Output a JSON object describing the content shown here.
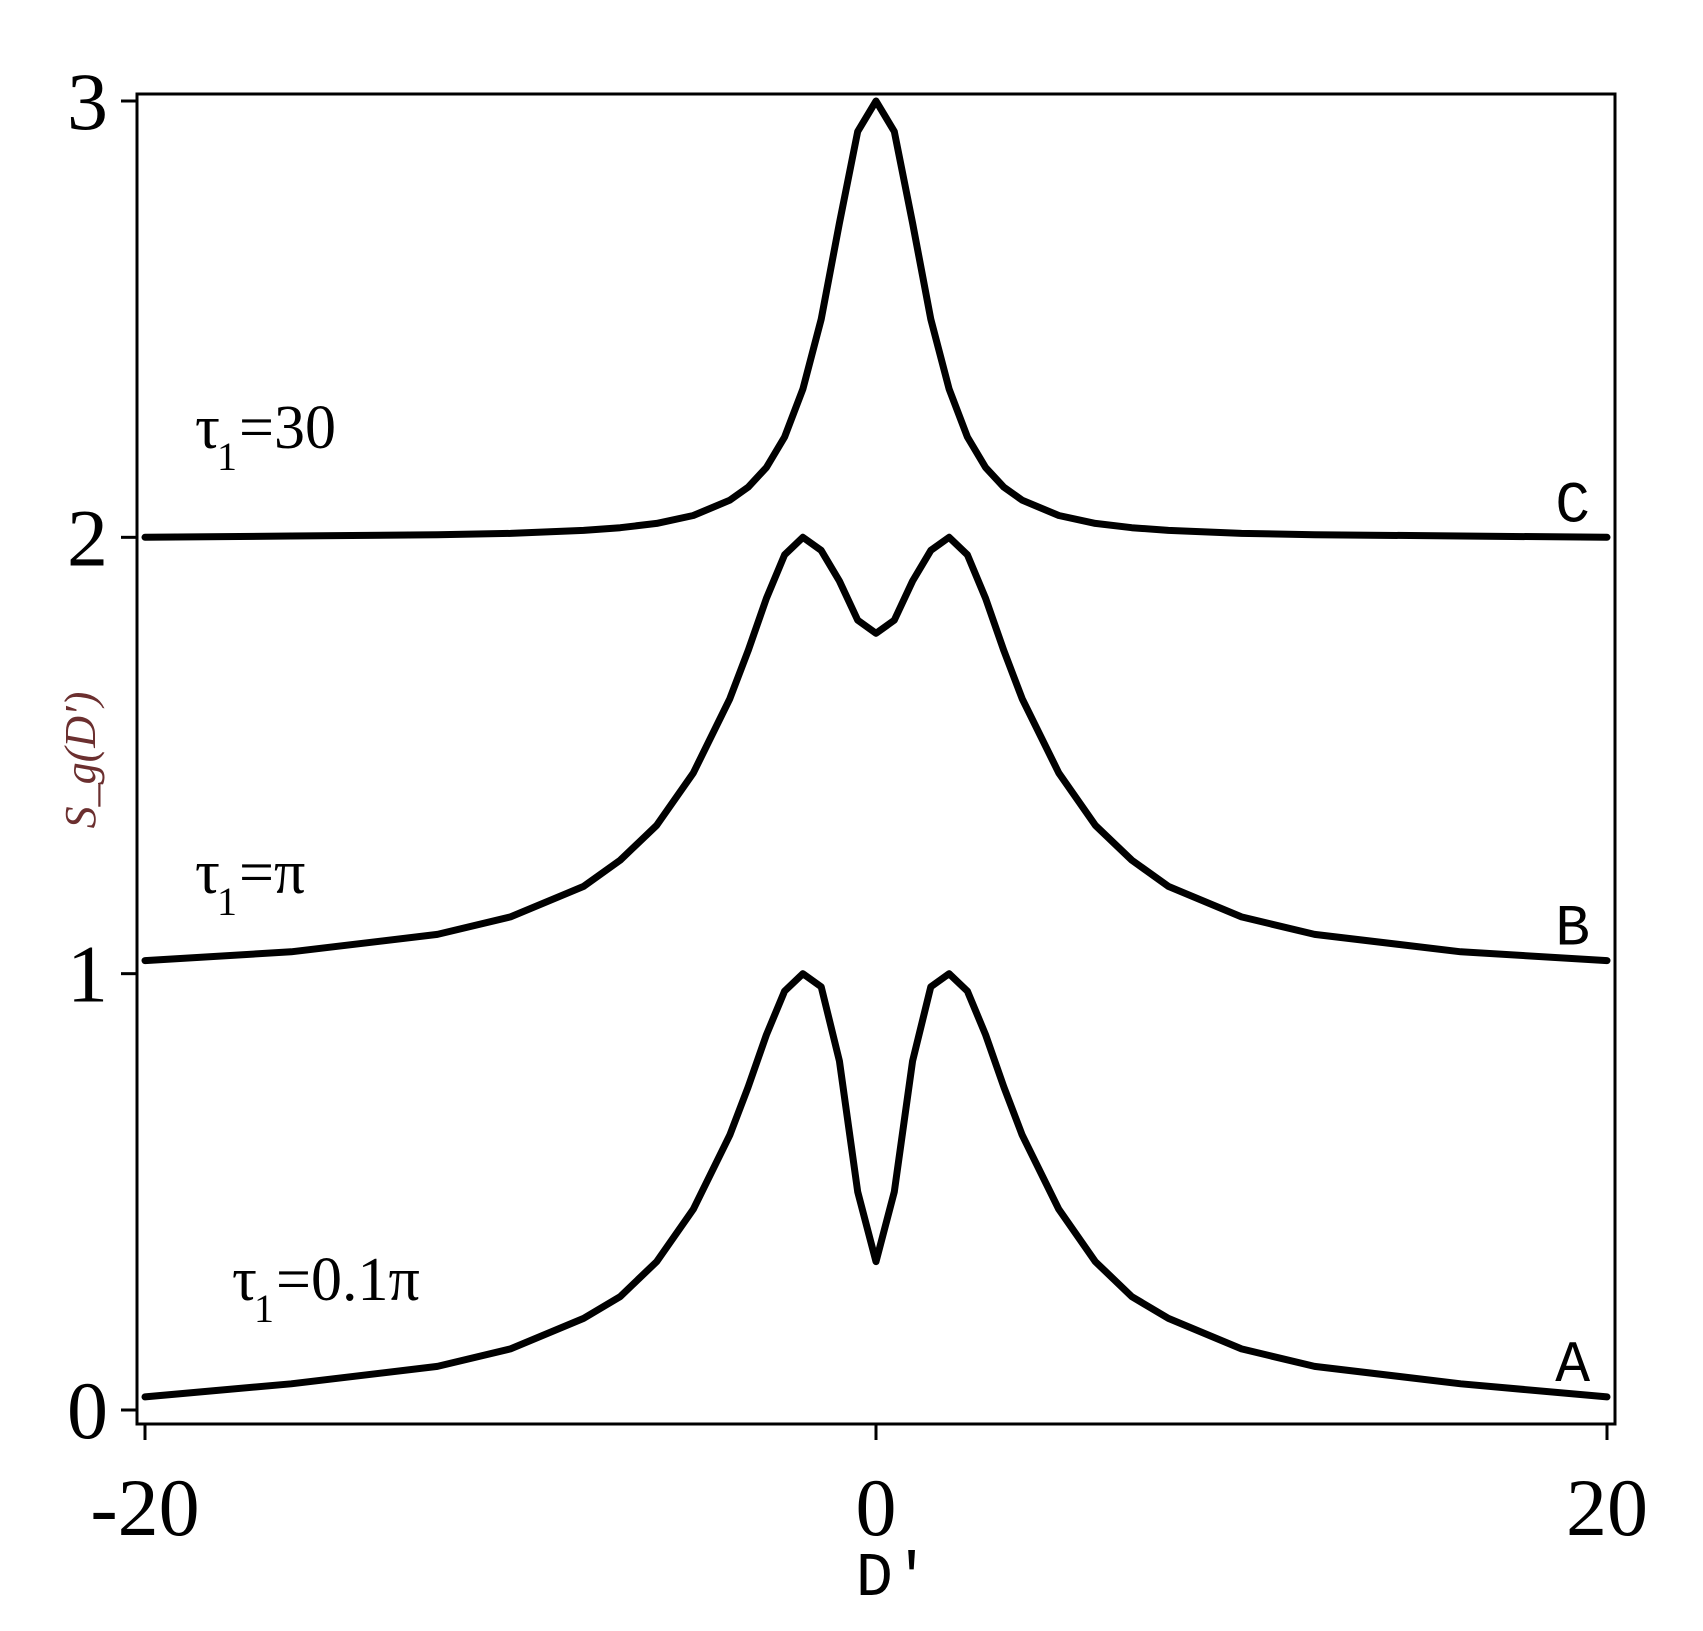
{
  "chart_data": {
    "type": "line",
    "xlabel": "D′",
    "ylabel": "S_g(D′)",
    "xlim": [
      -20,
      20
    ],
    "ylim": [
      0,
      3
    ],
    "xticks": [
      "-20",
      "0",
      "20"
    ],
    "yticks": [
      "0",
      "1",
      "2",
      "3"
    ],
    "grid": false,
    "series": [
      {
        "name": "A",
        "param": "τ",
        "param_sub": "1",
        "param_value": "=0.1π",
        "x": [
          -20,
          -16,
          -12,
          -10,
          -8,
          -7,
          -6,
          -5,
          -4,
          -3.5,
          -3,
          -2.5,
          -2,
          -1.5,
          -1,
          -0.5,
          0,
          0.5,
          1,
          1.5,
          2,
          2.5,
          3,
          3.5,
          4,
          5,
          6,
          7,
          8,
          10,
          12,
          16,
          20
        ],
        "y": [
          0.03,
          0.06,
          0.1,
          0.14,
          0.21,
          0.26,
          0.34,
          0.46,
          0.63,
          0.74,
          0.86,
          0.96,
          1.0,
          0.97,
          0.8,
          0.5,
          0.34,
          0.5,
          0.8,
          0.97,
          1.0,
          0.96,
          0.86,
          0.74,
          0.63,
          0.46,
          0.34,
          0.26,
          0.21,
          0.14,
          0.1,
          0.06,
          0.03
        ]
      },
      {
        "name": "B",
        "param": "τ",
        "param_sub": "1",
        "param_value": "=π",
        "x": [
          -20,
          -16,
          -12,
          -10,
          -8,
          -7,
          -6,
          -5,
          -4,
          -3.5,
          -3,
          -2.5,
          -2,
          -1.5,
          -1,
          -0.5,
          0,
          0.5,
          1,
          1.5,
          2,
          2.5,
          3,
          3.5,
          4,
          5,
          6,
          7,
          8,
          10,
          12,
          16,
          20
        ],
        "y": [
          1.03,
          1.05,
          1.09,
          1.13,
          1.2,
          1.26,
          1.34,
          1.46,
          1.63,
          1.74,
          1.86,
          1.96,
          2.0,
          1.97,
          1.9,
          1.81,
          1.78,
          1.81,
          1.9,
          1.97,
          2.0,
          1.96,
          1.86,
          1.74,
          1.63,
          1.46,
          1.34,
          1.26,
          1.2,
          1.13,
          1.09,
          1.05,
          1.03
        ]
      },
      {
        "name": "C",
        "param": "τ",
        "param_sub": "1",
        "param_value": "=30",
        "x": [
          -20,
          -16,
          -12,
          -10,
          -8,
          -7,
          -6,
          -5,
          -4,
          -3.5,
          -3,
          -2.5,
          -2,
          -1.5,
          -1,
          -0.5,
          0,
          0.5,
          1,
          1.5,
          2,
          2.5,
          3,
          3.5,
          4,
          5,
          6,
          7,
          8,
          10,
          12,
          16,
          20
        ],
        "y": [
          2.0,
          2.003,
          2.006,
          2.009,
          2.016,
          2.022,
          2.032,
          2.05,
          2.085,
          2.115,
          2.16,
          2.23,
          2.34,
          2.5,
          2.72,
          2.93,
          3.0,
          2.93,
          2.72,
          2.5,
          2.34,
          2.23,
          2.16,
          2.115,
          2.085,
          2.05,
          2.032,
          2.022,
          2.016,
          2.009,
          2.006,
          2.003,
          2.0
        ]
      }
    ]
  }
}
